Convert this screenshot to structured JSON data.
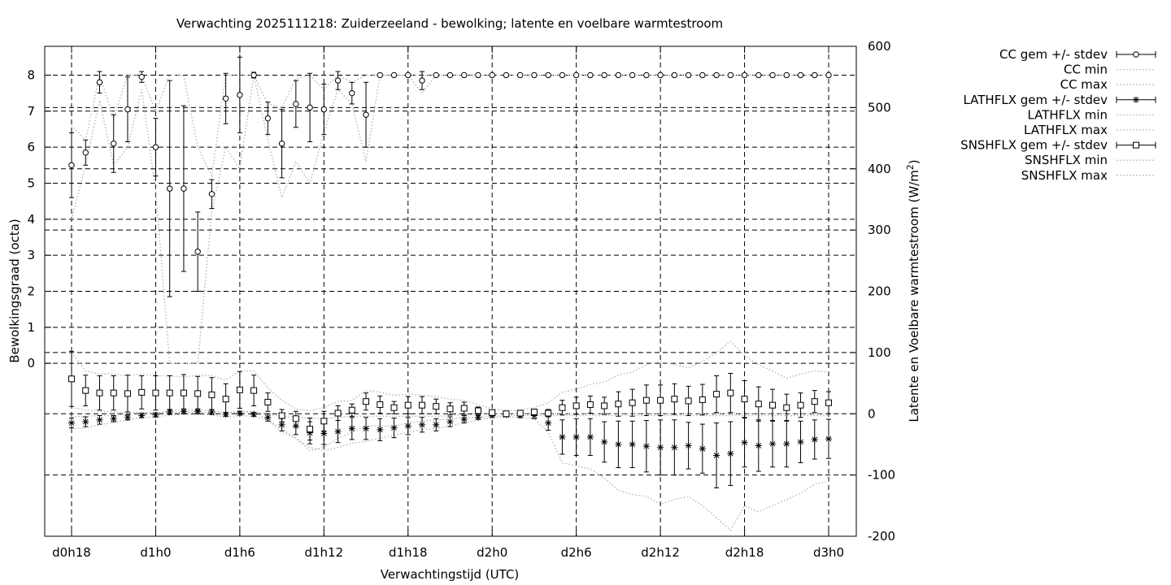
{
  "chart_data": {
    "type": "line",
    "title": "Verwachting 2025111218: Zuiderzeeland - bewolking; latente en voelbare warmtestroom",
    "xlabel": "Verwachtingstijd (UTC)",
    "ylabel": "Bewolkingsgraad (octa)",
    "y2label_main": "Latente en Voelbare warmtestroom (W/m",
    "y2label_sup": "2",
    "y2label_end": ")",
    "grid": true,
    "legend_position": "outside-top-right",
    "xlim": [
      18,
      72
    ],
    "ylim": [
      -4.8,
      8.8
    ],
    "y2lim": [
      -200,
      600
    ],
    "x_ticks": [
      {
        "x": 18,
        "label": "d0h18"
      },
      {
        "x": 24,
        "label": "d1h0"
      },
      {
        "x": 30,
        "label": "d1h6"
      },
      {
        "x": 36,
        "label": "d1h12"
      },
      {
        "x": 42,
        "label": "d1h18"
      },
      {
        "x": 48,
        "label": "d2h0"
      },
      {
        "x": 54,
        "label": "d2h6"
      },
      {
        "x": 60,
        "label": "d2h12"
      },
      {
        "x": 66,
        "label": "d2h18"
      },
      {
        "x": 72,
        "label": "d3h0"
      }
    ],
    "y_ticks": [
      0,
      1,
      2,
      3,
      4,
      5,
      6,
      7,
      8
    ],
    "y2_ticks": [
      -200,
      -100,
      0,
      100,
      200,
      300,
      400,
      500,
      600
    ],
    "x": [
      18,
      19,
      20,
      21,
      22,
      23,
      24,
      25,
      26,
      27,
      28,
      29,
      30,
      31,
      32,
      33,
      34,
      35,
      36,
      37,
      38,
      39,
      40,
      41,
      42,
      43,
      44,
      45,
      46,
      47,
      48,
      49,
      50,
      51,
      52,
      53,
      54,
      55,
      56,
      57,
      58,
      59,
      60,
      61,
      62,
      63,
      64,
      65,
      66,
      67,
      68,
      69,
      70,
      71,
      72
    ],
    "series": [
      {
        "name": "CC gem +/- stdev",
        "axis": "left",
        "marker": "circle",
        "color": "#000000",
        "values": [
          5.5,
          5.85,
          7.8,
          6.1,
          7.05,
          7.95,
          6.0,
          4.85,
          4.85,
          3.1,
          4.7,
          7.35,
          7.45,
          8.0,
          6.8,
          6.1,
          7.2,
          7.1,
          7.05,
          7.85,
          7.5,
          6.9,
          8,
          8,
          8,
          7.85,
          8,
          8,
          8,
          8,
          8,
          8,
          8,
          8,
          8,
          8,
          8,
          8,
          8,
          8,
          8,
          8,
          8,
          8,
          8,
          8,
          8,
          8,
          8,
          8,
          8,
          8,
          8,
          8,
          8
        ],
        "stdev": [
          0.9,
          0.35,
          0.3,
          0.8,
          0.9,
          0.15,
          0.8,
          3.0,
          2.3,
          1.1,
          0.4,
          0.7,
          1.05,
          0.08,
          0.45,
          0.95,
          0.65,
          0.95,
          0.7,
          0.25,
          0.3,
          0.9,
          0,
          0,
          0,
          0.25,
          0,
          0,
          0,
          0,
          0,
          0,
          0,
          0,
          0,
          0,
          0,
          0,
          0,
          0,
          0,
          0,
          0,
          0,
          0,
          0,
          0,
          0,
          0,
          0,
          0,
          0,
          0,
          0,
          0
        ]
      },
      {
        "name": "CC min",
        "axis": "left",
        "style": "dotted",
        "values": [
          4.0,
          5.5,
          7.3,
          5.5,
          6.0,
          7.6,
          4.8,
          0,
          0,
          0,
          4.2,
          6.0,
          5.4,
          8,
          6.2,
          4.6,
          5.6,
          5.0,
          6.4,
          7.6,
          7.2,
          5.6,
          8,
          8,
          8,
          7.5,
          8,
          8,
          8,
          8,
          8,
          8,
          8,
          8,
          8,
          8,
          8,
          8,
          8,
          8,
          8,
          8,
          8,
          8,
          8,
          8,
          8,
          8,
          8,
          8,
          8,
          8,
          8,
          8,
          8
        ]
      },
      {
        "name": "CC max",
        "axis": "left",
        "style": "dotted",
        "values": [
          6.6,
          6.2,
          8,
          6.8,
          8,
          8,
          7.0,
          8,
          8,
          6.0,
          5.2,
          8,
          8,
          8,
          7.2,
          7.1,
          7.9,
          8,
          7.6,
          8,
          7.8,
          8,
          8,
          8,
          8,
          8,
          8,
          8,
          8,
          8,
          8,
          8,
          8,
          8,
          8,
          8,
          8,
          8,
          8,
          8,
          8,
          8,
          8,
          8,
          8,
          8,
          8,
          8,
          8,
          8,
          8,
          8,
          8,
          8,
          8
        ]
      },
      {
        "name": "LATHFLX gem +/- stdev",
        "axis": "right",
        "marker": "star",
        "color": "#000000",
        "values": [
          -15,
          -13,
          -10,
          -8,
          -6,
          -3,
          -2,
          3,
          4,
          4,
          3,
          -1,
          1,
          -1,
          -6,
          -18,
          -20,
          -31,
          -32,
          -29,
          -24,
          -24,
          -26,
          -23,
          -20,
          -18,
          -18,
          -13,
          -9,
          -6,
          -3,
          -2,
          -3,
          -3,
          -15,
          -38,
          -38,
          -38,
          -46,
          -50,
          -50,
          -53,
          -55,
          -55,
          -52,
          -57,
          -68,
          -65,
          -47,
          -52,
          -49,
          -49,
          -46,
          -42,
          -41
        ],
        "stdev": [
          8,
          8,
          7,
          5,
          4,
          3,
          3,
          4,
          4,
          4,
          4,
          3,
          3,
          3,
          6,
          10,
          14,
          18,
          18,
          18,
          18,
          18,
          18,
          16,
          14,
          12,
          10,
          8,
          6,
          3,
          2,
          2,
          3,
          5,
          12,
          28,
          30,
          30,
          33,
          38,
          38,
          42,
          45,
          45,
          38,
          40,
          53,
          52,
          40,
          42,
          38,
          38,
          34,
          32,
          32
        ]
      },
      {
        "name": "LATHFLX min",
        "axis": "right",
        "style": "dotted",
        "values": [
          -25,
          -23,
          -18,
          -14,
          -10,
          -6,
          -5,
          -2,
          -1,
          -1,
          -2,
          -5,
          -3,
          -4,
          -10,
          -30,
          -40,
          -55,
          -60,
          -55,
          -48,
          -45,
          -40,
          -35,
          -30,
          -26,
          -24,
          -20,
          -15,
          -10,
          -6,
          -5,
          -6,
          -8,
          -30,
          -80,
          -85,
          -90,
          -105,
          -125,
          -132,
          -135,
          -148,
          -140,
          -135,
          -150,
          -170,
          -190,
          -150,
          -160,
          -150,
          -140,
          -130,
          -115,
          -110
        ]
      },
      {
        "name": "LATHFLX max",
        "axis": "right",
        "style": "dotted",
        "values": [
          -5,
          -4,
          -3,
          -2,
          -1,
          0,
          0,
          5,
          6,
          6,
          5,
          2,
          3,
          2,
          0,
          -5,
          -5,
          -8,
          -8,
          -6,
          -4,
          -4,
          -4,
          -4,
          -4,
          -4,
          -4,
          -3,
          -2,
          -1,
          0,
          0,
          0,
          0,
          0,
          0,
          0,
          0,
          0,
          0,
          0,
          0,
          0,
          0,
          0,
          0,
          0,
          0,
          0,
          0,
          0,
          0,
          0,
          0,
          0
        ]
      },
      {
        "name": "SNSHFLX gem +/- stdev",
        "axis": "right",
        "marker": "square",
        "color": "#000000",
        "values": [
          57,
          38,
          34,
          34,
          33,
          35,
          34,
          34,
          34,
          33,
          31,
          24,
          39,
          38,
          19,
          -3,
          -8,
          -25,
          -12,
          1,
          6,
          20,
          15,
          10,
          14,
          14,
          12,
          8,
          9,
          5,
          2,
          0,
          1,
          3,
          1,
          10,
          13,
          15,
          13,
          16,
          18,
          22,
          22,
          24,
          21,
          23,
          32,
          34,
          24,
          16,
          14,
          10,
          14,
          20,
          18
        ],
        "stdev": [
          45,
          25,
          28,
          28,
          30,
          27,
          28,
          28,
          30,
          28,
          28,
          25,
          30,
          25,
          15,
          10,
          12,
          18,
          16,
          12,
          10,
          14,
          14,
          10,
          14,
          14,
          12,
          10,
          10,
          6,
          4,
          3,
          3,
          4,
          6,
          12,
          14,
          14,
          14,
          20,
          22,
          25,
          25,
          25,
          24,
          25,
          30,
          32,
          30,
          28,
          26,
          22,
          20,
          18,
          18
        ]
      },
      {
        "name": "SNSHFLX min",
        "axis": "right",
        "style": "dotted",
        "values": [
          10,
          6,
          4,
          3,
          2,
          2,
          2,
          2,
          2,
          2,
          2,
          0,
          3,
          4,
          -10,
          -25,
          -40,
          -60,
          -55,
          -40,
          -30,
          -20,
          -20,
          -20,
          -15,
          -12,
          -10,
          -8,
          -6,
          -6,
          -4,
          -3,
          -3,
          -3,
          -3,
          -3,
          -3,
          -3,
          -3,
          -3,
          -3,
          -3,
          -3,
          -3,
          -3,
          -3,
          -3,
          -3,
          -3,
          -3,
          -3,
          -3,
          -3,
          -3,
          -3
        ]
      },
      {
        "name": "SNSHFLX max",
        "axis": "right",
        "style": "dotted",
        "values": [
          100,
          70,
          65,
          65,
          62,
          65,
          62,
          62,
          60,
          63,
          62,
          55,
          70,
          70,
          42,
          22,
          8,
          5,
          10,
          20,
          22,
          38,
          35,
          30,
          32,
          30,
          28,
          24,
          22,
          15,
          8,
          5,
          6,
          10,
          18,
          35,
          40,
          48,
          52,
          63,
          68,
          80,
          85,
          80,
          75,
          85,
          100,
          118,
          95,
          80,
          70,
          58,
          65,
          70,
          68
        ]
      }
    ]
  }
}
